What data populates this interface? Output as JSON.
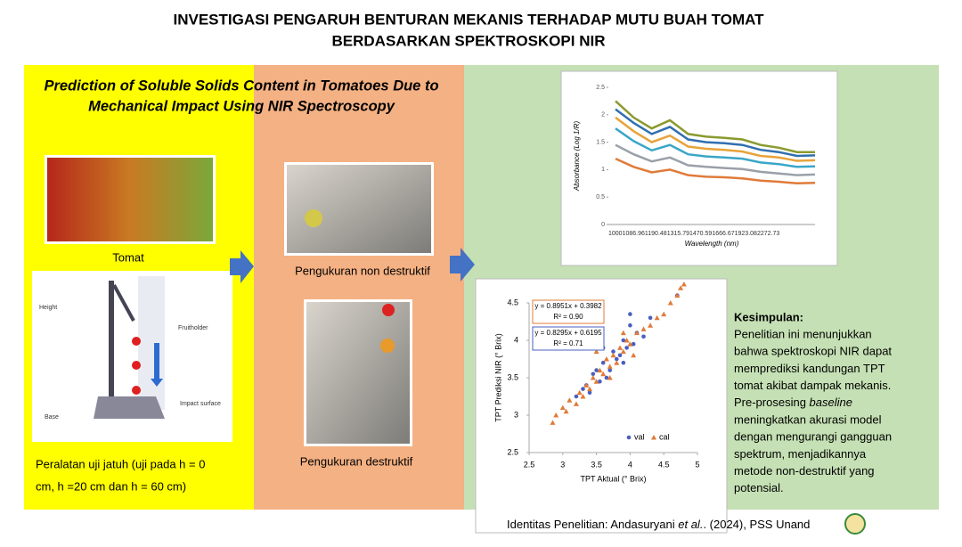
{
  "header": {
    "title": [
      "INVESTIGASI PENGARUH BENTURAN MEKANIS TERHADAP MUTU BUAH TOMAT",
      "BERDASARKAN SPEKTROSKOPI NIR"
    ]
  },
  "left": {
    "subtitle": [
      "Prediction of Soluble Solids Content in Tomatoes Due to",
      "Mechanical Impact Using NIR Spectroscopy"
    ],
    "tomato_caption": "Tomat",
    "apparatus_labels": [
      "Height",
      "Fruitholder",
      "Impact surface",
      "Base"
    ],
    "apparatus_caption": [
      "Peralatan uji jatuh (uji pada h = 0",
      "cm, h =20 cm dan h = 60 cm)"
    ]
  },
  "middle": {
    "captions": [
      "Pengukuran non destruktif",
      "Pengukuran destruktif"
    ]
  },
  "spectrum": {
    "type": "line",
    "ylabel": "Absorbance (Log 1/R)",
    "xlabel": "Wavelength (nm)",
    "x_labels": [
      "1000",
      "1086.96",
      "1190.48",
      "1315.79",
      "1470.59",
      "1666.67",
      "1923.08",
      "2272.73"
    ],
    "ylim": [
      0,
      2.5
    ],
    "yticks": [
      0,
      0.5,
      1,
      1.5,
      2,
      2.5
    ],
    "series": [
      {
        "color": "#8a9a2e",
        "values": [
          2.25,
          1.95,
          1.75,
          1.9,
          1.65,
          1.6,
          1.58,
          1.55,
          1.45,
          1.4,
          1.32,
          1.32
        ]
      },
      {
        "color": "#2f6fb0",
        "values": [
          2.1,
          1.85,
          1.65,
          1.78,
          1.55,
          1.5,
          1.48,
          1.45,
          1.36,
          1.32,
          1.25,
          1.26
        ]
      },
      {
        "color": "#e8a33a",
        "values": [
          1.95,
          1.7,
          1.5,
          1.62,
          1.42,
          1.38,
          1.36,
          1.33,
          1.25,
          1.22,
          1.16,
          1.17
        ]
      },
      {
        "color": "#3aa6c8",
        "values": [
          1.75,
          1.52,
          1.35,
          1.45,
          1.28,
          1.24,
          1.22,
          1.2,
          1.13,
          1.1,
          1.05,
          1.06
        ]
      },
      {
        "color": "#9aa0a8",
        "values": [
          1.45,
          1.28,
          1.15,
          1.22,
          1.08,
          1.05,
          1.03,
          1.01,
          0.96,
          0.93,
          0.9,
          0.91
        ]
      },
      {
        "color": "#e07b39",
        "values": [
          1.2,
          1.05,
          0.95,
          1.0,
          0.9,
          0.87,
          0.86,
          0.84,
          0.8,
          0.78,
          0.75,
          0.76
        ]
      }
    ]
  },
  "scatter": {
    "type": "scatter",
    "xlabel": "TPT Aktual (° Brix)",
    "ylabel": "TPT Prediksi NIR (° Brix)",
    "xlim": [
      2.5,
      5
    ],
    "xticks": [
      2.5,
      3,
      3.5,
      4,
      4.5,
      5
    ],
    "ylim": [
      2.5,
      4.5
    ],
    "yticks": [
      2.5,
      3,
      3.5,
      4,
      4.5
    ],
    "equations": [
      [
        "y = 0.8951x + 0.3982",
        "R² = 0.90"
      ],
      [
        "y = 0.8295x + 0.6195",
        "R² = 0.71"
      ]
    ],
    "series": [
      {
        "name": "val",
        "color": "#4a5fc1",
        "x": [
          3.2,
          3.3,
          3.4,
          3.45,
          3.5,
          3.55,
          3.6,
          3.65,
          3.7,
          3.75,
          3.8,
          3.85,
          3.9,
          3.95,
          4.0,
          4.05,
          4.1,
          4.2,
          4.3,
          4.7,
          3.35,
          3.6,
          3.9,
          4.0
        ],
        "y": [
          3.25,
          3.35,
          3.3,
          3.55,
          3.6,
          3.45,
          3.7,
          3.5,
          3.6,
          3.85,
          3.75,
          3.8,
          4.0,
          3.9,
          4.2,
          3.95,
          4.1,
          4.05,
          4.3,
          4.6,
          3.4,
          3.9,
          3.7,
          4.35
        ]
      },
      {
        "name": "cal",
        "color": "#e07b39",
        "x": [
          2.85,
          2.9,
          3.0,
          3.05,
          3.1,
          3.2,
          3.25,
          3.3,
          3.35,
          3.4,
          3.45,
          3.5,
          3.55,
          3.6,
          3.65,
          3.7,
          3.75,
          3.8,
          3.85,
          3.9,
          3.95,
          4.0,
          4.1,
          4.2,
          4.3,
          4.4,
          4.5,
          4.6,
          4.7,
          4.75,
          4.8,
          3.5,
          3.7,
          3.9,
          4.05
        ],
        "y": [
          2.9,
          3.0,
          3.1,
          3.05,
          3.2,
          3.15,
          3.3,
          3.25,
          3.4,
          3.35,
          3.5,
          3.45,
          3.6,
          3.55,
          3.75,
          3.65,
          3.8,
          3.7,
          3.9,
          3.85,
          4.0,
          3.95,
          4.1,
          4.15,
          4.2,
          4.3,
          4.35,
          4.5,
          4.6,
          4.7,
          4.75,
          3.85,
          3.5,
          4.1,
          3.8
        ]
      }
    ]
  },
  "conclusion": {
    "heading": "Kesimpulan:",
    "lines": [
      "Penelitian ini menunjukkan",
      "bahwa spektroskopi NIR dapat",
      "memprediksi kandungan TPT",
      "tomat akibat dampak mekanis.",
      [
        "Pre-prosesing ",
        "baseline"
      ],
      "meningkatkan akurasi model",
      "dengan mengurangi gangguan",
      "spektrum, menjadikannya",
      "metode non-destruktif yang",
      "potensial."
    ]
  },
  "footer": {
    "parts": [
      "Identitas Penelitian: Andasuryani ",
      "et al.",
      ". (2024), PSS Unand"
    ]
  }
}
